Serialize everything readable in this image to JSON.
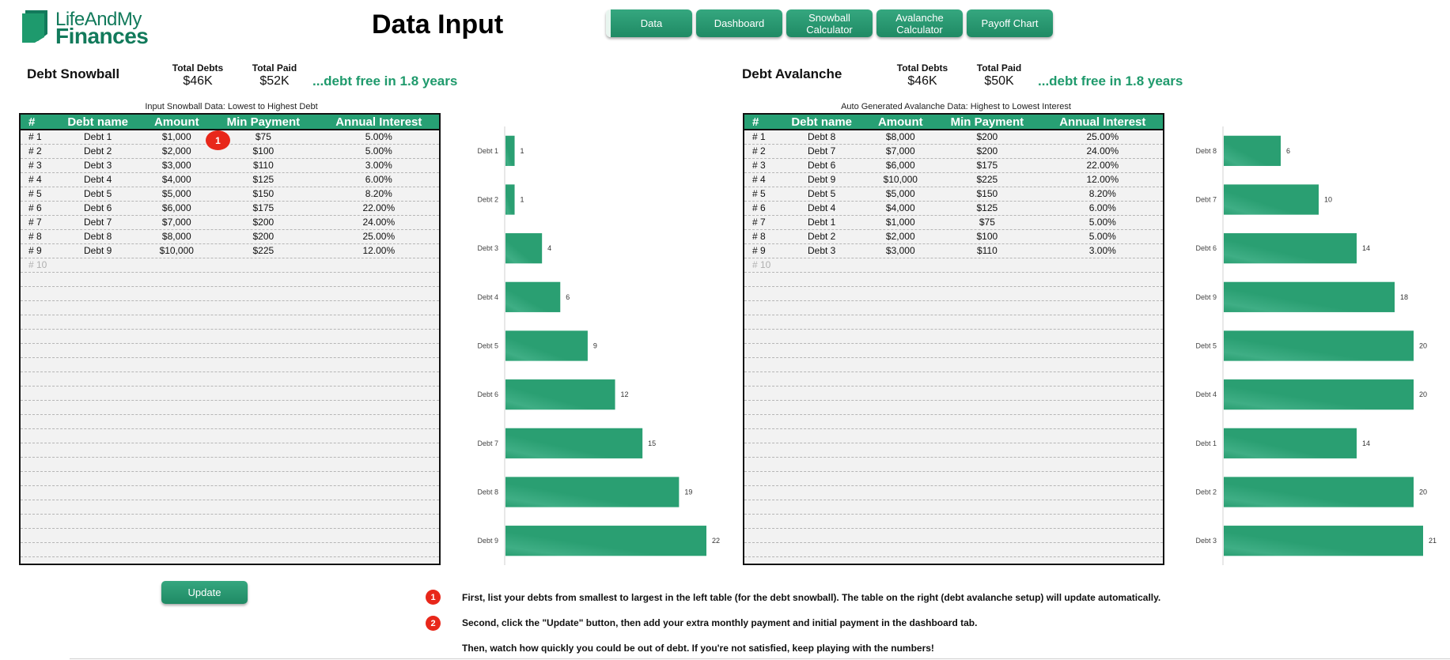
{
  "brand": {
    "line1": "LifeAndMy",
    "line2": "Finances",
    "color": "#127a5b"
  },
  "page_title": "Data Input",
  "nav": [
    {
      "label": "Data",
      "active": true
    },
    {
      "label": "Dashboard"
    },
    {
      "label": "Snowball\nCalculator"
    },
    {
      "label": "Avalanche\nCalculator"
    },
    {
      "label": "Payoff Chart"
    }
  ],
  "snowball": {
    "title": "Debt Snowball",
    "total_debts_label": "Total Debts",
    "total_debts": "$46K",
    "total_paid_label": "Total Paid",
    "total_paid": "$52K",
    "freedom": "...debt free in 1.8 years",
    "caption": "Input Snowball Data: Lowest to Highest Debt"
  },
  "avalanche": {
    "title": "Debt Avalanche",
    "total_debts_label": "Total Debts",
    "total_debts": "$46K",
    "total_paid_label": "Total Paid",
    "total_paid": "$50K",
    "freedom": "...debt free in 1.8 years",
    "caption": "Auto Generated Avalanche Data: Highest to Lowest Interest"
  },
  "table_headers": [
    "#",
    "Debt name",
    "Amount",
    "Min Payment",
    "Annual Interest"
  ],
  "snowball_rows": [
    [
      "# 1",
      "Debt 1",
      "$1,000",
      "$75",
      "5.00%"
    ],
    [
      "# 2",
      "Debt 2",
      "$2,000",
      "$100",
      "5.00%"
    ],
    [
      "# 3",
      "Debt 3",
      "$3,000",
      "$110",
      "3.00%"
    ],
    [
      "# 4",
      "Debt 4",
      "$4,000",
      "$125",
      "6.00%"
    ],
    [
      "# 5",
      "Debt 5",
      "$5,000",
      "$150",
      "8.20%"
    ],
    [
      "# 6",
      "Debt 6",
      "$6,000",
      "$175",
      "22.00%"
    ],
    [
      "# 7",
      "Debt 7",
      "$7,000",
      "$200",
      "24.00%"
    ],
    [
      "# 8",
      "Debt 8",
      "$8,000",
      "$200",
      "25.00%"
    ],
    [
      "# 9",
      "Debt 9",
      "$10,000",
      "$225",
      "12.00%"
    ]
  ],
  "avalanche_rows": [
    [
      "# 1",
      "Debt 8",
      "$8,000",
      "$200",
      "25.00%"
    ],
    [
      "# 2",
      "Debt 7",
      "$7,000",
      "$200",
      "24.00%"
    ],
    [
      "# 3",
      "Debt 6",
      "$6,000",
      "$175",
      "22.00%"
    ],
    [
      "# 4",
      "Debt 9",
      "$10,000",
      "$225",
      "12.00%"
    ],
    [
      "# 5",
      "Debt 5",
      "$5,000",
      "$150",
      "8.20%"
    ],
    [
      "# 6",
      "Debt 4",
      "$4,000",
      "$125",
      "6.00%"
    ],
    [
      "# 7",
      "Debt 1",
      "$1,000",
      "$75",
      "5.00%"
    ],
    [
      "# 8",
      "Debt 2",
      "$2,000",
      "$100",
      "5.00%"
    ],
    [
      "# 9",
      "Debt 3",
      "$3,000",
      "$110",
      "3.00%"
    ]
  ],
  "placeholder_row": "# 10",
  "update_label": "Update",
  "markers": [
    "1",
    "2"
  ],
  "instructions": [
    "First, list your debts from smallest to largest in the left table (for the debt snowball). The table on the right (debt avalanche setup) will update automatically.",
    "Second, click the \"Update\" button, then add your extra monthly payment and initial payment in the dashboard tab.",
    "Then, watch how quickly you could be out of debt. If you're not satisfied, keep playing with the numbers!"
  ],
  "colors": {
    "accent": "#27a074",
    "bar": "#2a9f72",
    "marker": "#e8271a"
  },
  "chart_data": [
    {
      "type": "bar",
      "orientation": "horizontal",
      "categories": [
        "Debt 1",
        "Debt 2",
        "Debt 3",
        "Debt 4",
        "Debt 5",
        "Debt 6",
        "Debt 7",
        "Debt 8",
        "Debt 9"
      ],
      "values": [
        1,
        1,
        4,
        6,
        9,
        12,
        15,
        19,
        22
      ],
      "xlim": [
        0,
        22
      ]
    },
    {
      "type": "bar",
      "orientation": "horizontal",
      "categories": [
        "Debt 8",
        "Debt 7",
        "Debt 6",
        "Debt 9",
        "Debt 5",
        "Debt 4",
        "Debt 1",
        "Debt 2",
        "Debt 3"
      ],
      "values": [
        6,
        10,
        14,
        18,
        20,
        20,
        14,
        20,
        21
      ],
      "xlim": [
        0,
        21
      ]
    }
  ]
}
